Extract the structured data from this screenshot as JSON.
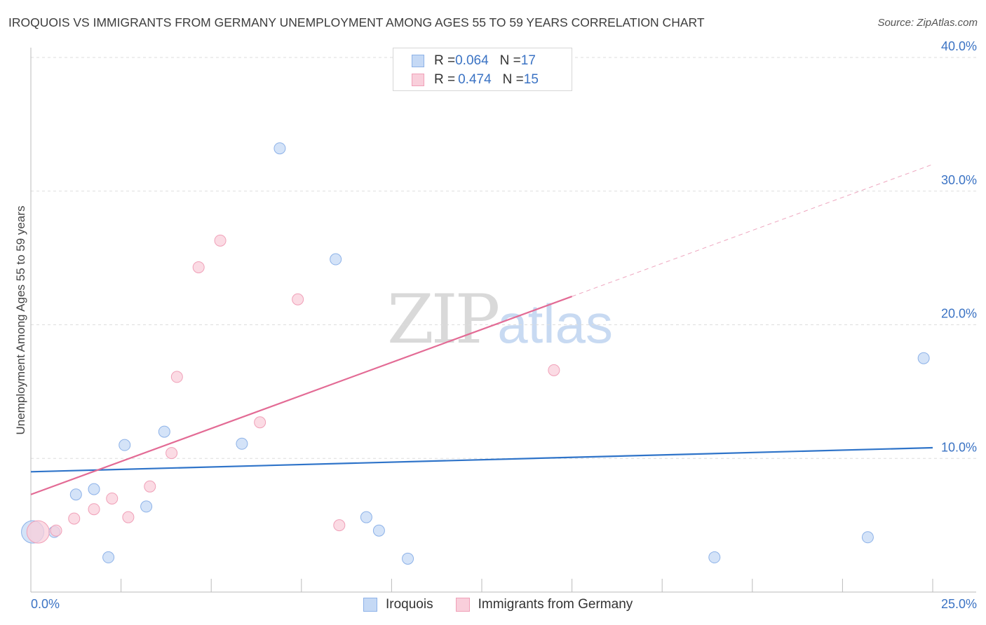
{
  "title": "IROQUOIS VS IMMIGRANTS FROM GERMANY UNEMPLOYMENT AMONG AGES 55 TO 59 YEARS CORRELATION CHART",
  "source": "Source: ZipAtlas.com",
  "watermark": {
    "zip": "ZIP",
    "atlas": "atlas"
  },
  "legend_top": [
    {
      "r_label": "R = ",
      "r_value": "0.064",
      "n_label": "N = ",
      "n_value": "17"
    },
    {
      "r_label": "R = ",
      "r_value": "0.474",
      "n_label": "N = ",
      "n_value": "15"
    }
  ],
  "colors": {
    "blue_fill": "#c5d9f5",
    "blue_stroke": "#8db2e8",
    "blue_line": "#2f74c9",
    "pink_fill": "#f9cfdb",
    "pink_stroke": "#f0a0b8",
    "pink_line": "#e36b95",
    "tick_label": "#3b73c4",
    "grid": "#dddddd"
  },
  "chart_data": {
    "type": "scatter",
    "title": "IROQUOIS VS IMMIGRANTS FROM GERMANY UNEMPLOYMENT AMONG AGES 55 TO 59 YEARS CORRELATION CHART",
    "xlabel": "",
    "ylabel": "Unemployment Among Ages 55 to 59 years",
    "xlim": [
      0,
      25
    ],
    "ylim": [
      0,
      40
    ],
    "x_tick_labels": [
      {
        "value": 0,
        "label": "0.0%"
      },
      {
        "value": 25,
        "label": "25.0%"
      }
    ],
    "y_ticks": [
      {
        "value": 10,
        "label": "10.0%"
      },
      {
        "value": 20,
        "label": "20.0%"
      },
      {
        "value": 30,
        "label": "30.0%"
      },
      {
        "value": 40,
        "label": "40.0%"
      }
    ],
    "series": [
      {
        "name": "Iroquois",
        "color": "blue",
        "points": [
          {
            "x": 0.05,
            "y": 4.5,
            "size": "large"
          },
          {
            "x": 0.65,
            "y": 4.5
          },
          {
            "x": 1.25,
            "y": 7.3
          },
          {
            "x": 1.75,
            "y": 7.7
          },
          {
            "x": 2.15,
            "y": 2.6
          },
          {
            "x": 2.6,
            "y": 11.0
          },
          {
            "x": 3.2,
            "y": 6.4
          },
          {
            "x": 3.7,
            "y": 12.0
          },
          {
            "x": 5.85,
            "y": 11.1
          },
          {
            "x": 6.9,
            "y": 33.2
          },
          {
            "x": 8.45,
            "y": 24.9
          },
          {
            "x": 9.3,
            "y": 5.6
          },
          {
            "x": 9.65,
            "y": 4.6
          },
          {
            "x": 10.45,
            "y": 2.5
          },
          {
            "x": 18.95,
            "y": 2.6
          },
          {
            "x": 23.2,
            "y": 4.1
          },
          {
            "x": 24.75,
            "y": 17.5
          }
        ],
        "trend": {
          "x0": 0,
          "y0": 9.0,
          "x1": 25,
          "y1": 10.8,
          "dashed_from": null
        }
      },
      {
        "name": "Immigrants from Germany",
        "color": "pink",
        "points": [
          {
            "x": 0.2,
            "y": 4.5,
            "size": "large"
          },
          {
            "x": 0.7,
            "y": 4.6
          },
          {
            "x": 1.2,
            "y": 5.5
          },
          {
            "x": 1.75,
            "y": 6.2
          },
          {
            "x": 2.25,
            "y": 7.0
          },
          {
            "x": 2.7,
            "y": 5.6
          },
          {
            "x": 3.3,
            "y": 7.9
          },
          {
            "x": 3.9,
            "y": 10.4
          },
          {
            "x": 4.05,
            "y": 16.1
          },
          {
            "x": 4.65,
            "y": 24.3
          },
          {
            "x": 5.25,
            "y": 26.3
          },
          {
            "x": 6.35,
            "y": 12.7
          },
          {
            "x": 7.4,
            "y": 21.9
          },
          {
            "x": 8.55,
            "y": 5.0
          },
          {
            "x": 14.5,
            "y": 16.6
          }
        ],
        "trend": {
          "x0": 0,
          "y0": 7.3,
          "x1": 25,
          "y1": 32.0,
          "dashed_from": 15.0
        }
      }
    ],
    "legend": [
      {
        "name": "Iroquois",
        "color": "blue"
      },
      {
        "name": "Immigrants from Germany",
        "color": "pink"
      }
    ],
    "grid": true
  }
}
